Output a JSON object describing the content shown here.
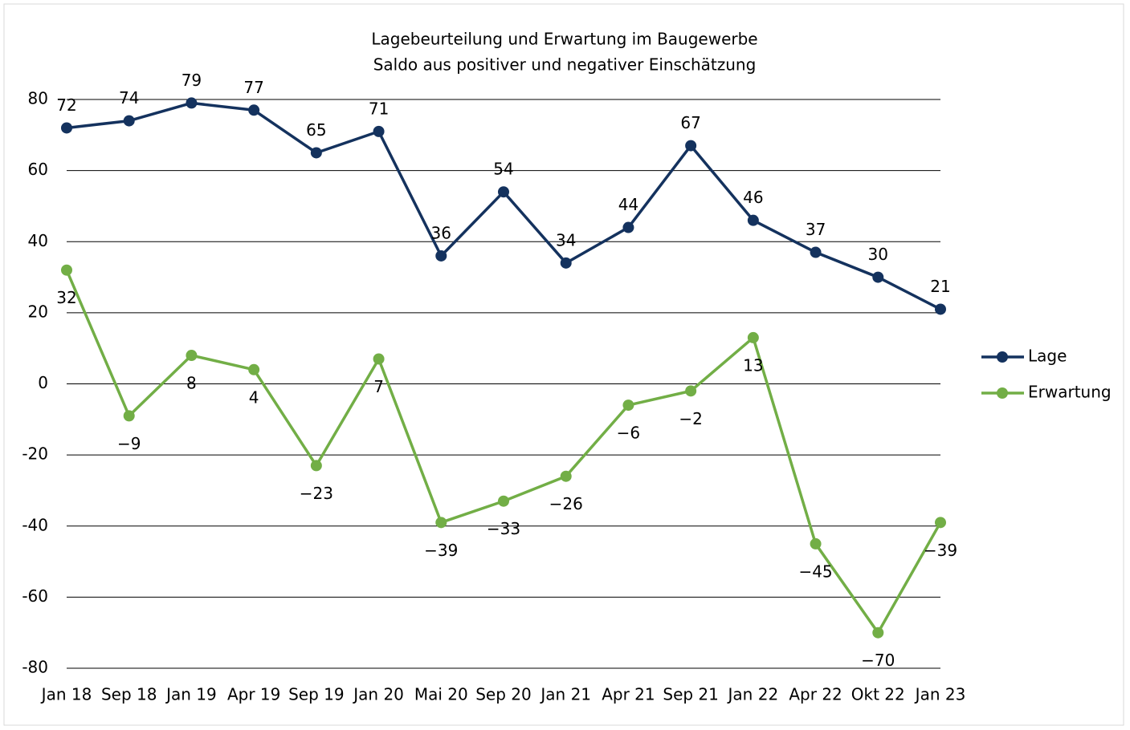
{
  "chart_data": {
    "type": "line",
    "title": "Lagebeurteilung und Erwartung im Baugewerbe",
    "subtitle": "Saldo aus positiver und negativer Einschätzung",
    "categories": [
      "Jan 18",
      "Sep 18",
      "Jan 19",
      "Apr 19",
      "Sep 19",
      "Jan 20",
      "Mai 20",
      "Sep 20",
      "Jan 21",
      "Apr 21",
      "Sep 21",
      "Jan 22",
      "Apr 22",
      "Okt 22",
      "Jan 23"
    ],
    "series": [
      {
        "name": "Lage",
        "color": "#14325e",
        "values": [
          72,
          74,
          79,
          77,
          65,
          71,
          36,
          54,
          34,
          44,
          67,
          46,
          37,
          30,
          21
        ]
      },
      {
        "name": "Erwartung",
        "color": "#72ae46",
        "values": [
          32,
          -9,
          8,
          4,
          -23,
          7,
          -39,
          -33,
          -26,
          -6,
          -2,
          13,
          -45,
          -70,
          -39
        ],
        "value_labels": [
          "32",
          "−9",
          "8",
          "4",
          "−23",
          "7",
          "−39",
          "−33",
          "−26",
          "−6",
          "−2",
          "13",
          "−45",
          "−70",
          "−39"
        ]
      }
    ],
    "ylim": [
      -80,
      80
    ],
    "yticks": [
      -80,
      -60,
      -40,
      -20,
      0,
      20,
      40,
      60,
      80
    ],
    "grid": true,
    "legend": "right"
  }
}
